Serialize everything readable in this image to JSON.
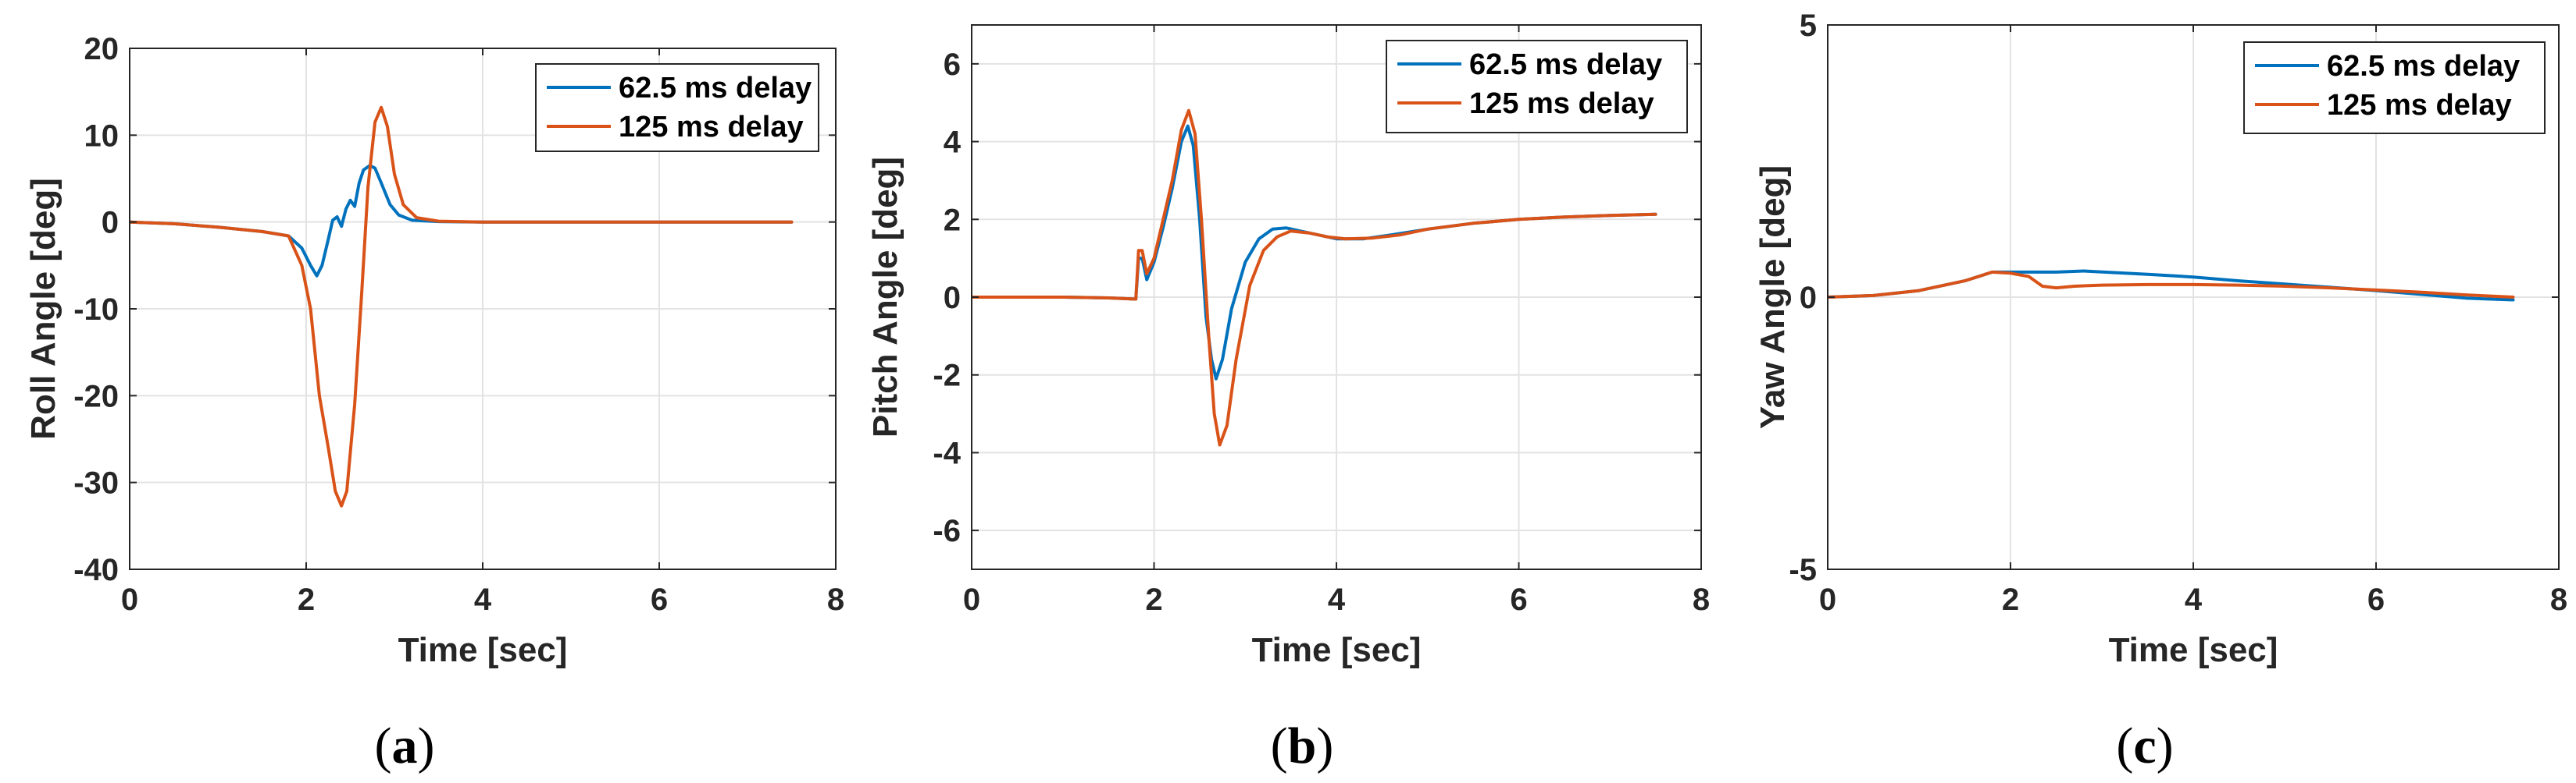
{
  "colors": {
    "series_1": "#0072BD",
    "series_2": "#D95319",
    "axis": "#262626",
    "grid": "#e3e3e3"
  },
  "chart_data": [
    {
      "type": "line",
      "caption": "a",
      "xlabel": "Time [sec]",
      "ylabel": "Roll Angle [deg]",
      "xlim": [
        0,
        8
      ],
      "ylim": [
        -40,
        20
      ],
      "xticks": [
        0,
        2,
        4,
        6,
        8
      ],
      "yticks": [
        -40,
        -30,
        -20,
        -10,
        0,
        10,
        20
      ],
      "grid": true,
      "legend_position": "top-right",
      "series": [
        {
          "name": "62.5 ms delay",
          "points": [
            [
              0,
              0
            ],
            [
              0.5,
              -0.2
            ],
            [
              1.0,
              -0.6
            ],
            [
              1.5,
              -1.1
            ],
            [
              1.8,
              -1.6
            ],
            [
              1.95,
              -3.0
            ],
            [
              2.05,
              -5.0
            ],
            [
              2.12,
              -6.2
            ],
            [
              2.18,
              -5.0
            ],
            [
              2.25,
              -2.0
            ],
            [
              2.3,
              0.2
            ],
            [
              2.35,
              0.6
            ],
            [
              2.4,
              -0.5
            ],
            [
              2.45,
              1.5
            ],
            [
              2.5,
              2.5
            ],
            [
              2.55,
              1.8
            ],
            [
              2.6,
              4.5
            ],
            [
              2.65,
              6.0
            ],
            [
              2.72,
              6.5
            ],
            [
              2.78,
              6.2
            ],
            [
              2.85,
              4.5
            ],
            [
              2.95,
              2.0
            ],
            [
              3.05,
              0.8
            ],
            [
              3.2,
              0.2
            ],
            [
              3.5,
              0.05
            ],
            [
              4,
              0
            ],
            [
              7.5,
              0
            ]
          ]
        },
        {
          "name": "125 ms delay",
          "points": [
            [
              0,
              0
            ],
            [
              0.5,
              -0.2
            ],
            [
              1.0,
              -0.6
            ],
            [
              1.5,
              -1.1
            ],
            [
              1.8,
              -1.6
            ],
            [
              1.95,
              -5.0
            ],
            [
              2.05,
              -10.0
            ],
            [
              2.15,
              -20.0
            ],
            [
              2.25,
              -26.0
            ],
            [
              2.33,
              -31.0
            ],
            [
              2.4,
              -32.7
            ],
            [
              2.46,
              -31.0
            ],
            [
              2.55,
              -21.0
            ],
            [
              2.63,
              -8.0
            ],
            [
              2.7,
              4.0
            ],
            [
              2.78,
              11.5
            ],
            [
              2.85,
              13.2
            ],
            [
              2.92,
              11.0
            ],
            [
              3.0,
              5.5
            ],
            [
              3.1,
              2.0
            ],
            [
              3.25,
              0.5
            ],
            [
              3.5,
              0.1
            ],
            [
              4,
              0
            ],
            [
              7.5,
              0
            ]
          ]
        }
      ]
    },
    {
      "type": "line",
      "caption": "b",
      "xlabel": "Time [sec]",
      "ylabel": "Pitch Angle [deg]",
      "xlim": [
        0,
        8
      ],
      "ylim": [
        -7,
        7
      ],
      "xticks": [
        0,
        2,
        4,
        6,
        8
      ],
      "yticks": [
        -6,
        -4,
        -2,
        0,
        2,
        4,
        6
      ],
      "grid": true,
      "legend_position": "top-right",
      "series": [
        {
          "name": "62.5 ms delay",
          "points": [
            [
              0,
              0
            ],
            [
              1.0,
              0
            ],
            [
              1.5,
              -0.02
            ],
            [
              1.8,
              -0.05
            ],
            [
              1.83,
              1.0
            ],
            [
              1.87,
              1.0
            ],
            [
              1.92,
              0.45
            ],
            [
              2.0,
              0.9
            ],
            [
              2.1,
              1.8
            ],
            [
              2.2,
              2.8
            ],
            [
              2.3,
              4.0
            ],
            [
              2.37,
              4.4
            ],
            [
              2.43,
              3.9
            ],
            [
              2.5,
              2.0
            ],
            [
              2.57,
              -0.5
            ],
            [
              2.63,
              -1.6
            ],
            [
              2.68,
              -2.1
            ],
            [
              2.75,
              -1.6
            ],
            [
              2.85,
              -0.3
            ],
            [
              3.0,
              0.9
            ],
            [
              3.15,
              1.5
            ],
            [
              3.3,
              1.75
            ],
            [
              3.45,
              1.78
            ],
            [
              3.6,
              1.7
            ],
            [
              3.8,
              1.6
            ],
            [
              4.0,
              1.5
            ],
            [
              4.3,
              1.5
            ],
            [
              4.6,
              1.6
            ],
            [
              5.0,
              1.75
            ],
            [
              5.5,
              1.9
            ],
            [
              6.0,
              2.0
            ],
            [
              6.5,
              2.06
            ],
            [
              7.0,
              2.1
            ],
            [
              7.5,
              2.13
            ]
          ]
        },
        {
          "name": "125 ms delay",
          "points": [
            [
              0,
              0
            ],
            [
              1.0,
              0
            ],
            [
              1.5,
              -0.02
            ],
            [
              1.8,
              -0.05
            ],
            [
              1.83,
              1.2
            ],
            [
              1.87,
              1.2
            ],
            [
              1.92,
              0.6
            ],
            [
              2.0,
              1.0
            ],
            [
              2.1,
              2.0
            ],
            [
              2.2,
              3.0
            ],
            [
              2.3,
              4.3
            ],
            [
              2.38,
              4.8
            ],
            [
              2.45,
              4.2
            ],
            [
              2.52,
              2.0
            ],
            [
              2.6,
              -1.0
            ],
            [
              2.66,
              -3.0
            ],
            [
              2.72,
              -3.8
            ],
            [
              2.8,
              -3.3
            ],
            [
              2.9,
              -1.6
            ],
            [
              3.05,
              0.3
            ],
            [
              3.2,
              1.2
            ],
            [
              3.35,
              1.55
            ],
            [
              3.5,
              1.7
            ],
            [
              3.7,
              1.65
            ],
            [
              3.9,
              1.55
            ],
            [
              4.1,
              1.5
            ],
            [
              4.4,
              1.52
            ],
            [
              4.7,
              1.6
            ],
            [
              5.0,
              1.75
            ],
            [
              5.5,
              1.9
            ],
            [
              6.0,
              2.0
            ],
            [
              6.5,
              2.06
            ],
            [
              7.0,
              2.1
            ],
            [
              7.5,
              2.13
            ]
          ]
        }
      ]
    },
    {
      "type": "line",
      "caption": "c",
      "xlabel": "Time [sec]",
      "ylabel": "Yaw Angle [deg]",
      "xlim": [
        0,
        8
      ],
      "ylim": [
        -5,
        5
      ],
      "xticks": [
        0,
        2,
        4,
        6,
        8
      ],
      "yticks": [
        -5,
        0,
        5
      ],
      "grid": true,
      "legend_position": "top-right",
      "series": [
        {
          "name": "62.5 ms delay",
          "points": [
            [
              0,
              0
            ],
            [
              0.5,
              0.03
            ],
            [
              1.0,
              0.12
            ],
            [
              1.5,
              0.3
            ],
            [
              1.8,
              0.46
            ],
            [
              2.0,
              0.46
            ],
            [
              2.5,
              0.46
            ],
            [
              2.8,
              0.48
            ],
            [
              3.5,
              0.42
            ],
            [
              4.0,
              0.37
            ],
            [
              4.5,
              0.3
            ],
            [
              5.0,
              0.24
            ],
            [
              5.5,
              0.18
            ],
            [
              6.0,
              0.12
            ],
            [
              6.5,
              0.05
            ],
            [
              7.0,
              -0.02
            ],
            [
              7.5,
              -0.05
            ]
          ]
        },
        {
          "name": "125 ms delay",
          "points": [
            [
              0,
              0
            ],
            [
              0.5,
              0.03
            ],
            [
              1.0,
              0.12
            ],
            [
              1.5,
              0.3
            ],
            [
              1.8,
              0.46
            ],
            [
              2.0,
              0.44
            ],
            [
              2.2,
              0.38
            ],
            [
              2.35,
              0.2
            ],
            [
              2.5,
              0.17
            ],
            [
              2.7,
              0.2
            ],
            [
              3.0,
              0.22
            ],
            [
              3.5,
              0.23
            ],
            [
              4.0,
              0.23
            ],
            [
              4.5,
              0.22
            ],
            [
              5.0,
              0.2
            ],
            [
              5.5,
              0.17
            ],
            [
              6.0,
              0.13
            ],
            [
              6.5,
              0.09
            ],
            [
              7.0,
              0.04
            ],
            [
              7.5,
              0.0
            ]
          ]
        }
      ]
    }
  ]
}
